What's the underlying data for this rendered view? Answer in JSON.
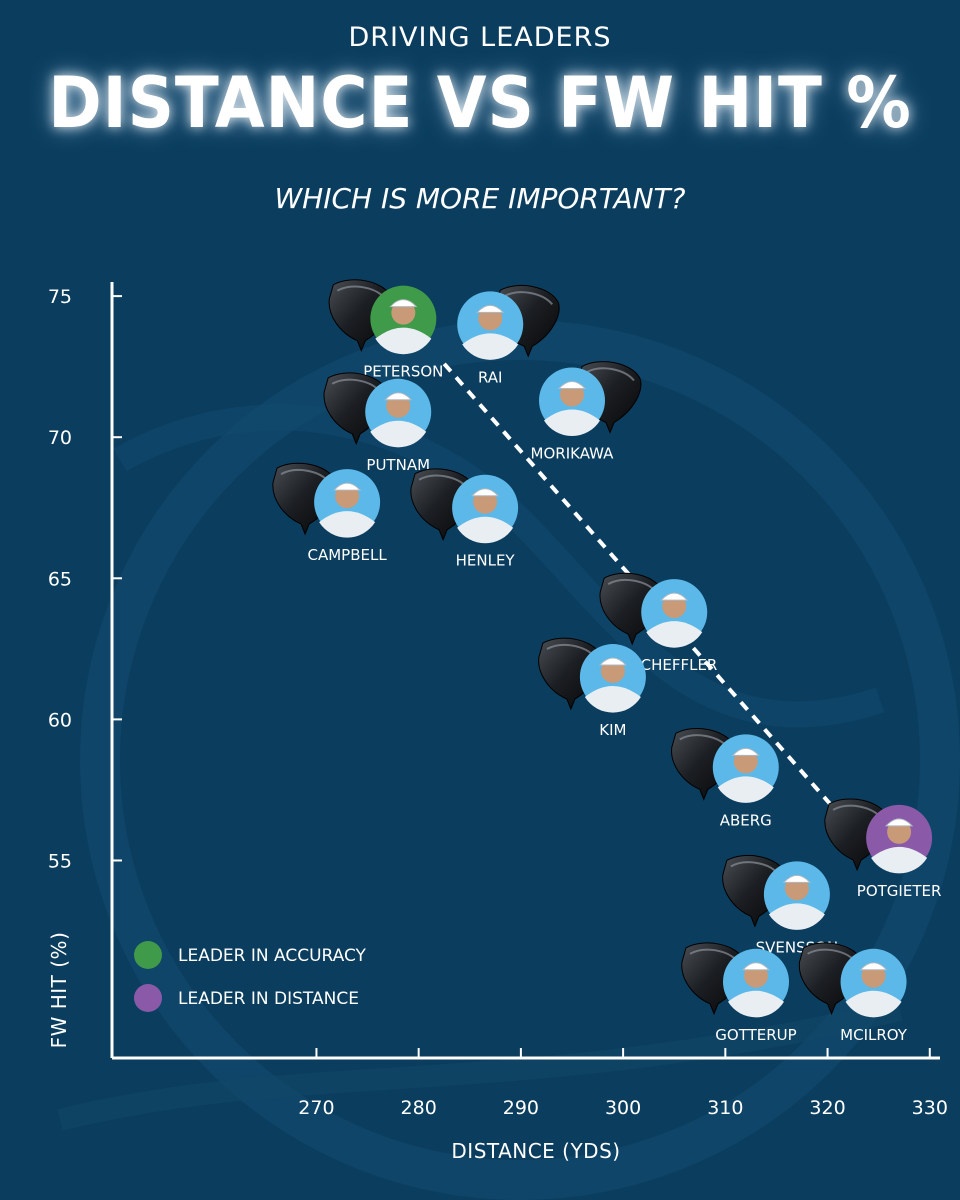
{
  "header": {
    "kicker": "DRIVING LEADERS",
    "title": "DISTANCE VS FW HIT %",
    "subtitle": "WHICH IS MORE IMPORTANT?"
  },
  "colors": {
    "background": "#0b3d5e",
    "accuracy_leader": "#3f9a4a",
    "distance_leader": "#8a5aa8",
    "photo_bg": "#5bb8e8",
    "trend": "#ffffff"
  },
  "legend": [
    {
      "label": "LEADER IN ACCURACY",
      "color": "#3f9a4a"
    },
    {
      "label": "LEADER IN DISTANCE",
      "color": "#8a5aa8"
    }
  ],
  "chart_data": {
    "type": "scatter",
    "xlabel": "DISTANCE (YDS)",
    "ylabel": "FW HIT (%)",
    "xlim": [
      250,
      331
    ],
    "ylim": [
      48,
      75.5
    ],
    "x_ticks": [
      270,
      280,
      290,
      300,
      310,
      320,
      330
    ],
    "y_ticks": [
      55,
      60,
      65,
      70,
      75
    ],
    "legend_position": "bottom-left",
    "points": [
      {
        "name": "PETERSON",
        "x": 278.5,
        "y": 74.2,
        "highlight": "accuracy",
        "club_side": "left"
      },
      {
        "name": "RAI",
        "x": 287.0,
        "y": 74.0,
        "highlight": "",
        "club_side": "right"
      },
      {
        "name": "PUTNAM",
        "x": 278.0,
        "y": 70.9,
        "highlight": "",
        "club_side": "left"
      },
      {
        "name": "MORIKAWA",
        "x": 295.0,
        "y": 71.3,
        "highlight": "",
        "club_side": "right"
      },
      {
        "name": "CAMPBELL",
        "x": 273.0,
        "y": 67.7,
        "highlight": "",
        "club_side": "left"
      },
      {
        "name": "HENLEY",
        "x": 286.5,
        "y": 67.5,
        "highlight": "",
        "club_side": "left"
      },
      {
        "name": "SCHEFFLER",
        "x": 305.0,
        "y": 63.8,
        "highlight": "",
        "club_side": "left"
      },
      {
        "name": "KIM",
        "x": 299.0,
        "y": 61.5,
        "highlight": "",
        "club_side": "left"
      },
      {
        "name": "ABERG",
        "x": 312.0,
        "y": 58.3,
        "highlight": "",
        "club_side": "left"
      },
      {
        "name": "POTGIETER",
        "x": 327.0,
        "y": 55.8,
        "highlight": "distance",
        "club_side": "left"
      },
      {
        "name": "SVENSSON",
        "x": 317.0,
        "y": 53.8,
        "highlight": "",
        "club_side": "left"
      },
      {
        "name": "GOTTERUP",
        "x": 313.0,
        "y": 50.7,
        "highlight": "",
        "club_side": "left"
      },
      {
        "name": "MCILROY",
        "x": 324.5,
        "y": 50.7,
        "highlight": "",
        "club_side": "left"
      }
    ],
    "trendline": {
      "x": [
        282.5,
        320.5
      ],
      "y": [
        72.6,
        56.9
      ]
    }
  }
}
